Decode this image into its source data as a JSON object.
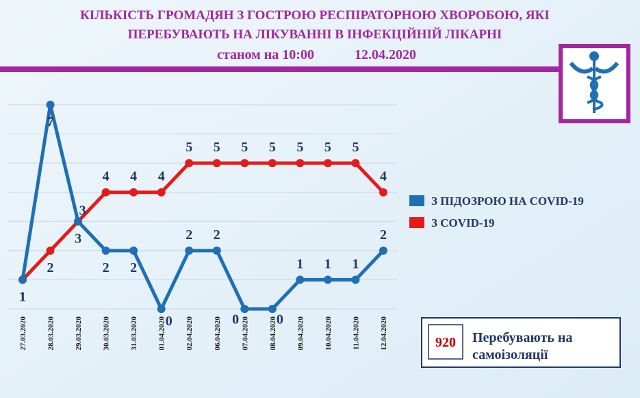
{
  "chart_data": {
    "type": "line",
    "title": [
      "КІЛЬКІСТЬ  ГРОМАДЯН  З ГОСТРОЮ РЕСПІРАТОРНОЮ ХВОРОБОЮ, ЯКІ",
      "ПЕРЕБУВАЮТЬ НА ЛІКУВАННІ В ІНФЕКЦІЙНІЙ  ЛІКАРНІ"
    ],
    "subtitle": "станом на 10:00",
    "date": "12.04.2020",
    "categories": [
      "27.03.2020",
      "28.03.2020",
      "29.03.2020",
      "30.03.2020",
      "31.03.2020",
      "01.04.2020",
      "02.04.2020",
      "06.04.2020",
      "07.04.2020",
      "08.04.2020",
      "09.04.2020",
      "10.04.2020",
      "11.04.2020",
      "12.04.2020"
    ],
    "series": [
      {
        "name": "З ПІДОЗРОЮ НА COVID-19",
        "color": "#1f6fb5",
        "values": [
          1,
          7,
          3,
          2,
          2,
          0,
          2,
          2,
          0,
          0,
          1,
          1,
          1,
          2
        ]
      },
      {
        "name": "З COVID-19",
        "color": "#e51b1b",
        "values": [
          1,
          2,
          3,
          4,
          4,
          4,
          5,
          5,
          5,
          5,
          5,
          5,
          5,
          4
        ]
      }
    ],
    "ylim": [
      0,
      7
    ],
    "yticks": [
      0,
      1,
      2,
      3,
      4,
      5,
      6,
      7
    ],
    "grid": true,
    "legend": "right",
    "annotation": {
      "value": 920,
      "text": [
        "Перебувають на",
        "самоізоляції"
      ]
    }
  }
}
